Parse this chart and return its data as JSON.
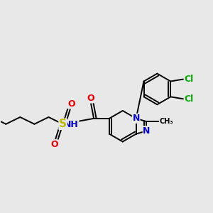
{
  "bg_color": "#e8e8e8",
  "atom_colors": {
    "C": "#000000",
    "N": "#0000cc",
    "O": "#ee0000",
    "S": "#bbbb00",
    "Cl": "#00aa00",
    "H": "#444444"
  },
  "bond_color": "#000000",
  "bond_width": 1.4,
  "font_size_atom": 9,
  "font_size_methyl": 8
}
